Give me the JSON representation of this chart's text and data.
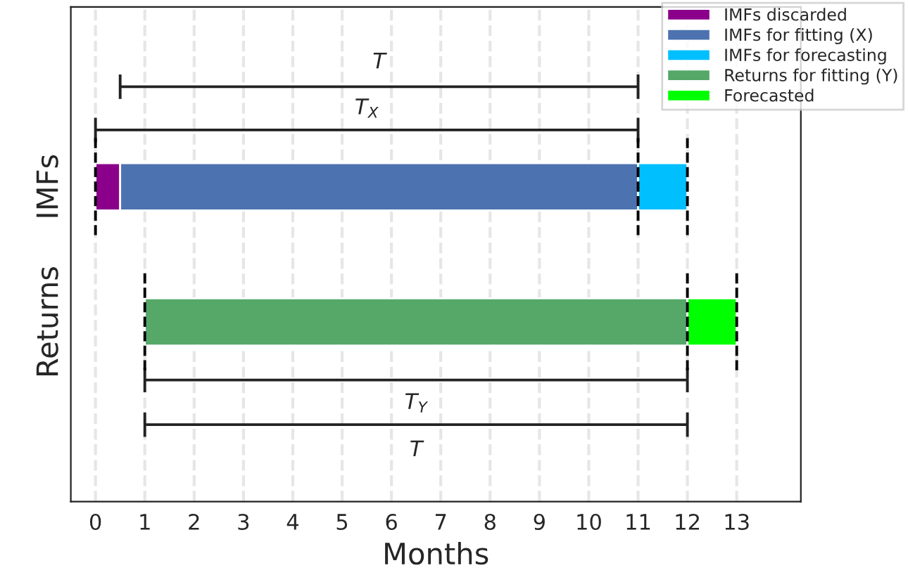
{
  "chart_data": {
    "type": "bar",
    "orientation": "horizontal",
    "categories": [
      "IMFs",
      "Returns"
    ],
    "series": [
      {
        "name": "IMFs discarded",
        "color": "#8b008b",
        "base": [
          0,
          null
        ],
        "values": [
          0.5,
          null
        ]
      },
      {
        "name": "IMFs for fitting (X)",
        "color": "#4c72b0",
        "base": [
          0.5,
          null
        ],
        "values": [
          10.5,
          null
        ]
      },
      {
        "name": "IMFs for forecasting",
        "color": "#00bfff",
        "base": [
          11,
          null
        ],
        "values": [
          1,
          null
        ]
      },
      {
        "name": "Returns for fitting (Y)",
        "color": "#55a868",
        "base": [
          null,
          1
        ],
        "values": [
          null,
          11
        ]
      },
      {
        "name": "Forecasted",
        "color": "#00ff00",
        "base": [
          null,
          12
        ],
        "values": [
          null,
          1
        ]
      }
    ],
    "xlim": [
      -0.5,
      14.3
    ],
    "xticks": [
      0,
      1,
      2,
      3,
      4,
      5,
      6,
      7,
      8,
      9,
      10,
      11,
      12,
      13
    ],
    "xlabel": "Months",
    "grid": "x",
    "legend": "top right",
    "annotations": [
      "T",
      "T$_{X}$",
      "T$_{Y}$",
      "T"
    ]
  }
}
